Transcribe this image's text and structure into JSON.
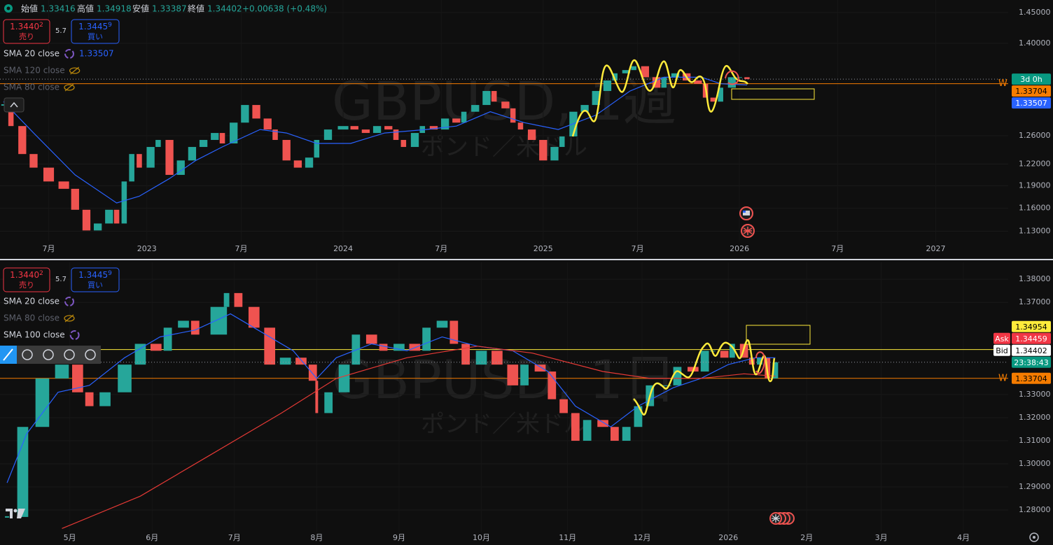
{
  "ohlc": {
    "open_label": "始値",
    "open": 1.33416,
    "high_label": "高値",
    "high": 1.34918,
    "low_label": "安値",
    "low": 1.33387,
    "close_label": "終値",
    "close": 1.34402,
    "change": "+0.00638 (+0.48%)"
  },
  "chart_data": [
    {
      "type": "candlestick",
      "title": "GBPUSD, 1週",
      "subtitle": "ポンド／米ドル",
      "log_scale": true,
      "sell": {
        "price": "1.3440",
        "pip": "2",
        "label": "売り"
      },
      "spread": 5.7,
      "buy": {
        "price": "1.3445",
        "pip": "9",
        "label": "買い"
      },
      "up_color": "#26a69a",
      "down_color": "#ef5350",
      "x": [
        0,
        2,
        5,
        8,
        12,
        16,
        19,
        22,
        25,
        28,
        30,
        32,
        34,
        36,
        39,
        41,
        44,
        47,
        50,
        53,
        56,
        58,
        61,
        64,
        67,
        70,
        72,
        75,
        78,
        81,
        83,
        86,
        90,
        93,
        96,
        99,
        102,
        104,
        106,
        109,
        111,
        114,
        117,
        120,
        122,
        125,
        128,
        130,
        133,
        135,
        137,
        140,
        143,
        146,
        148,
        151,
        154,
        157,
        160,
        162,
        165,
        167,
        170,
        173,
        175,
        178,
        181,
        184,
        186,
        188,
        190,
        193,
        195,
        197
      ],
      "values": [
        1.305,
        1.274,
        1.234,
        1.215,
        1.196,
        1.186,
        1.158,
        1.131,
        1.14,
        1.158,
        1.14,
        1.196,
        1.234,
        1.215,
        1.244,
        1.254,
        1.205,
        1.225,
        1.244,
        1.254,
        1.264,
        1.249,
        1.279,
        1.305,
        1.285,
        1.269,
        1.254,
        1.225,
        1.215,
        1.229,
        1.254,
        1.269,
        1.274,
        1.269,
        1.264,
        1.274,
        1.269,
        1.254,
        1.244,
        1.264,
        1.274,
        1.269,
        1.285,
        1.279,
        1.295,
        1.305,
        1.326,
        1.31,
        1.3,
        1.279,
        1.269,
        1.254,
        1.225,
        1.244,
        1.259,
        1.295,
        1.305,
        1.326,
        1.342,
        1.353,
        1.358,
        1.364,
        1.347,
        1.331,
        1.347,
        1.353,
        1.342,
        1.337,
        1.316,
        1.31,
        1.331,
        1.347,
        1.347,
        1.34402
      ],
      "series": [
        {
          "name": "SMA 20 close",
          "color": "#2962ff",
          "visible": true,
          "x": [
            0,
            8,
            19,
            30,
            36,
            44,
            51,
            58,
            68,
            75,
            83,
            92,
            101,
            112,
            120,
            129,
            138,
            147,
            157,
            166,
            175,
            185,
            190,
            197
          ],
          "values": [
            1.31,
            1.264,
            1.205,
            1.167,
            1.176,
            1.2,
            1.225,
            1.244,
            1.269,
            1.264,
            1.249,
            1.249,
            1.264,
            1.269,
            1.274,
            1.295,
            1.279,
            1.269,
            1.29,
            1.326,
            1.347,
            1.347,
            1.337,
            1.33507
          ]
        },
        {
          "name": "SMA 120 close",
          "visible": false
        },
        {
          "name": "SMA 80 close",
          "visible": false
        }
      ],
      "levels": [
        {
          "value": 1.33704,
          "color": "#f57c00",
          "marker": "W"
        }
      ],
      "countdown": "3d 0h",
      "xlim": [
        -0.9,
        266.2
      ],
      "xticks": [
        {
          "value": 12,
          "label": "7月"
        },
        {
          "value": 38,
          "label": "2023"
        },
        {
          "value": 63,
          "label": "7月"
        },
        {
          "value": 90,
          "label": "2024"
        },
        {
          "value": 116,
          "label": "7月"
        },
        {
          "value": 143,
          "label": "2025"
        },
        {
          "value": 168,
          "label": "7月"
        },
        {
          "value": 195,
          "label": "2026"
        },
        {
          "value": 221,
          "label": "7月"
        },
        {
          "value": 247,
          "label": "2027"
        }
      ],
      "ylim": [
        1.117,
        1.471
      ],
      "yticks": [
        {
          "value": 1.45,
          "label": "1.45000"
        },
        {
          "value": 1.4,
          "label": "1.40000"
        },
        {
          "value": 1.26,
          "label": "1.26000"
        },
        {
          "value": 1.22,
          "label": "1.22000"
        },
        {
          "value": 1.19,
          "label": "1.19000"
        },
        {
          "value": 1.16,
          "label": "1.16000"
        },
        {
          "value": 1.13,
          "label": "1.13000"
        }
      ]
    },
    {
      "type": "candlestick",
      "title": "GBPUSD, 1日",
      "subtitle": "ポンド／米ドル",
      "log_scale": false,
      "sell": {
        "price": "1.3440",
        "pip": "2",
        "label": "売り"
      },
      "spread": 5.7,
      "buy": {
        "price": "1.3445",
        "pip": "9",
        "label": "買い"
      },
      "up_color": "#26a69a",
      "down_color": "#ef5350",
      "x": [
        0,
        4,
        9,
        14,
        18,
        21,
        25,
        30,
        34,
        38,
        41,
        45,
        48,
        54,
        56,
        59,
        63,
        67,
        71,
        75,
        78,
        79,
        82,
        86,
        89,
        93,
        96,
        100,
        104,
        107,
        111,
        114,
        117,
        121,
        125,
        129,
        132,
        136,
        139,
        142,
        145,
        148,
        152,
        155,
        158,
        161,
        164,
        168,
        171,
        175,
        178,
        180,
        183,
        185,
        188,
        190,
        192,
        194,
        196
      ],
      "values": [
        1.277,
        1.316,
        1.337,
        1.343,
        1.331,
        1.325,
        1.331,
        1.343,
        1.352,
        1.349,
        1.359,
        1.362,
        1.356,
        1.368,
        1.374,
        1.368,
        1.359,
        1.343,
        1.346,
        1.343,
        1.336,
        1.322,
        1.331,
        1.343,
        1.356,
        1.352,
        1.349,
        1.352,
        1.349,
        1.359,
        1.362,
        1.352,
        1.343,
        1.349,
        1.343,
        1.334,
        1.343,
        1.34,
        1.328,
        1.322,
        1.31,
        1.319,
        1.316,
        1.31,
        1.316,
        1.325,
        1.334,
        1.334,
        1.342,
        1.34,
        1.349,
        1.349,
        1.346,
        1.352,
        1.346,
        1.343,
        1.346,
        1.337,
        1.34402
      ],
      "series": [
        {
          "name": "SMA 20 close",
          "color": "#2962ff",
          "visible": true,
          "x": [
            0,
            5,
            13,
            21,
            30,
            39,
            48,
            57,
            64,
            73,
            79,
            84,
            93,
            102,
            111,
            120,
            129,
            138,
            145,
            154,
            161,
            170,
            177,
            184,
            191,
            196
          ],
          "values": [
            1.2918,
            1.313,
            1.331,
            1.334,
            1.346,
            1.355,
            1.358,
            1.365,
            1.358,
            1.349,
            1.337,
            1.346,
            1.352,
            1.349,
            1.355,
            1.351,
            1.349,
            1.34,
            1.325,
            1.316,
            1.325,
            1.333,
            1.337,
            1.343,
            1.346,
            1.346
          ]
        },
        {
          "name": "SMA 80 close",
          "visible": false
        },
        {
          "name": "SMA 100 close",
          "color": "#e53935",
          "visible": true,
          "x": [
            14,
            34,
            52,
            70,
            84,
            102,
            120,
            134,
            152,
            164,
            177,
            188,
            196
          ],
          "values": [
            1.272,
            1.286,
            1.304,
            1.322,
            1.337,
            1.346,
            1.351,
            1.348,
            1.34,
            1.337,
            1.337,
            1.339,
            1.338
          ]
        }
      ],
      "levels": [
        {
          "value": 1.34954,
          "color": "#ffeb3b"
        },
        {
          "value": 1.33704,
          "color": "#f57c00",
          "marker": "W"
        }
      ],
      "quote": {
        "ask_label": "Ask",
        "ask": 1.34459,
        "bid_label": "Bid",
        "bid": 1.34402
      },
      "countdown": "23:38:43",
      "xlim": [
        -1.8,
        255.4
      ],
      "xticks": [
        {
          "value": 16,
          "label": "5月"
        },
        {
          "value": 37,
          "label": "6月"
        },
        {
          "value": 58,
          "label": "7月"
        },
        {
          "value": 79,
          "label": "8月"
        },
        {
          "value": 100,
          "label": "9月"
        },
        {
          "value": 121,
          "label": "10月"
        },
        {
          "value": 143,
          "label": "11月"
        },
        {
          "value": 162,
          "label": "12月"
        },
        {
          "value": 184,
          "label": "2026"
        },
        {
          "value": 204,
          "label": "2月"
        },
        {
          "value": 223,
          "label": "3月"
        },
        {
          "value": 244,
          "label": "4月"
        }
      ],
      "ylim": [
        1.2706,
        1.3873
      ],
      "yticks": [
        {
          "value": 1.38,
          "label": "1.38000"
        },
        {
          "value": 1.37,
          "label": "1.37000"
        },
        {
          "value": 1.33,
          "label": "1.33000"
        },
        {
          "value": 1.32,
          "label": "1.32000"
        },
        {
          "value": 1.31,
          "label": "1.31000"
        },
        {
          "value": 1.3,
          "label": "1.30000"
        },
        {
          "value": 1.29,
          "label": "1.29000"
        },
        {
          "value": 1.28,
          "label": "1.28000"
        }
      ]
    }
  ]
}
